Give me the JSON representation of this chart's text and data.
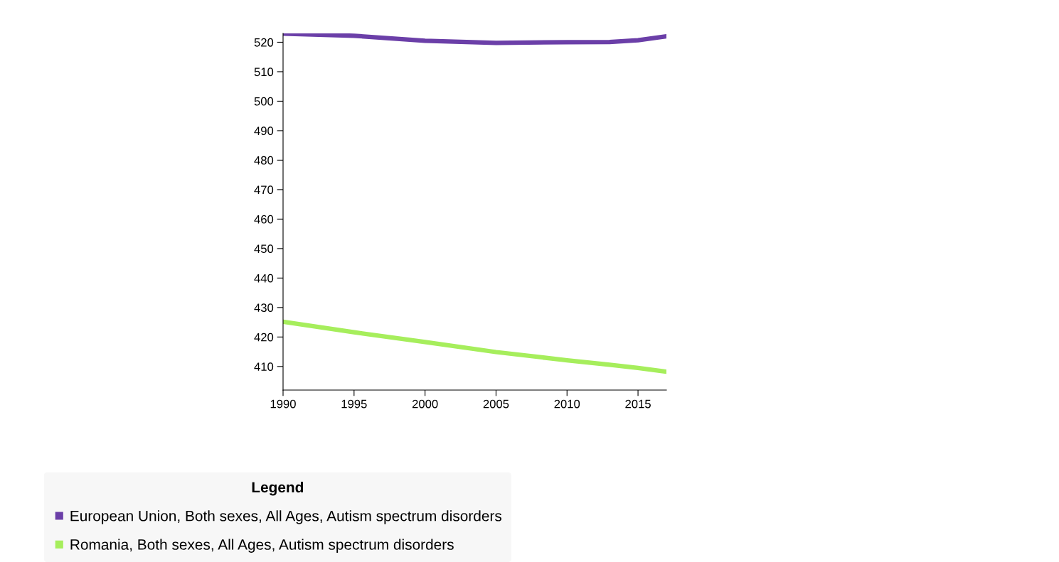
{
  "chart_data": {
    "type": "line",
    "legend_title": "Legend",
    "legend": "bottom",
    "grid": false,
    "marker": "none",
    "line_style": "solid",
    "x": [
      1990,
      1995,
      2000,
      2005,
      2010,
      2013,
      2015,
      2017
    ],
    "series": [
      {
        "name": "European Union, Both sexes, All Ages, Autism spectrum disorders",
        "color": "#6b3fa8",
        "values": [
          522.9,
          522.2,
          520.5,
          519.8,
          520.0,
          520.1,
          520.7,
          522.0
        ]
      },
      {
        "name": "Romania, Both sexes, All Ages, Autism spectrum disorders",
        "color": "#a6ee5c",
        "values": [
          425.2,
          421.6,
          418.3,
          414.9,
          412.1,
          410.6,
          409.5,
          408.2
        ]
      }
    ],
    "xlim": [
      1990,
      2017
    ],
    "xticks": [
      1990,
      1995,
      2000,
      2005,
      2010,
      2015
    ],
    "ylim": [
      402,
      523
    ],
    "yticks": [
      410,
      420,
      430,
      440,
      450,
      460,
      470,
      480,
      490,
      500,
      510,
      520
    ]
  }
}
